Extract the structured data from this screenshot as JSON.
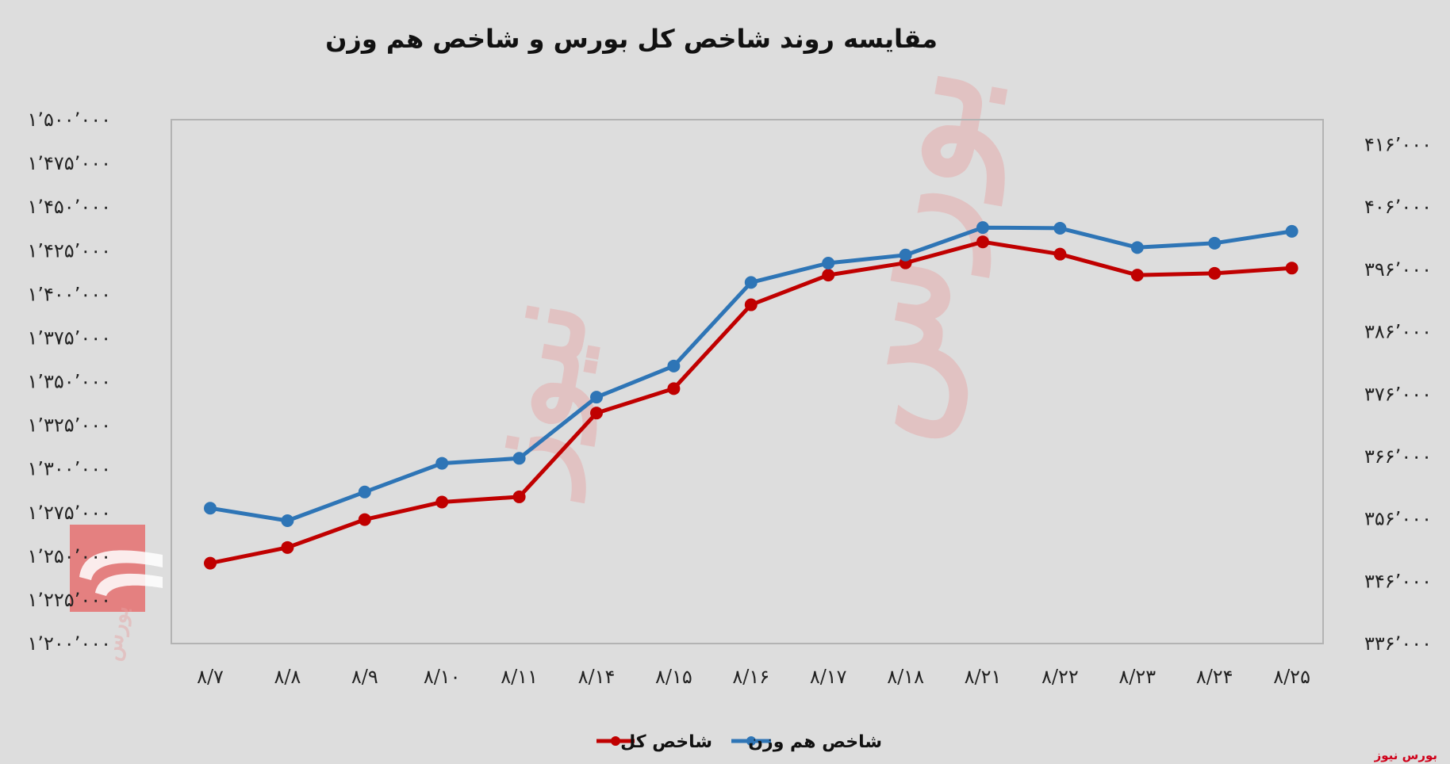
{
  "chart_data": {
    "type": "line",
    "title": "مقایسه روند شاخص کل بورس و شاخص هم وزن",
    "categories": [
      "۸/۷",
      "۸/۸",
      "۸/۹",
      "۸/۱۰",
      "۸/۱۱",
      "۸/۱۴",
      "۸/۱۵",
      "۸/۱۶",
      "۸/۱۷",
      "۸/۱۸",
      "۸/۲۱",
      "۸/۲۲",
      "۸/۲۳",
      "۸/۲۴",
      "۸/۲۵"
    ],
    "y_left": {
      "ylim": [
        1200000,
        1500000
      ],
      "ticks": [
        1200000,
        1225000,
        1250000,
        1275000,
        1300000,
        1325000,
        1350000,
        1375000,
        1400000,
        1425000,
        1450000,
        1475000,
        1500000
      ],
      "tick_labels": [
        "۱٬۲۰۰٬۰۰۰",
        "۱٬۲۲۵٬۰۰۰",
        "۱٬۲۵۰٬۰۰۰",
        "۱٬۲۷۵٬۰۰۰",
        "۱٬۳۰۰٬۰۰۰",
        "۱٬۳۲۵٬۰۰۰",
        "۱٬۳۵۰٬۰۰۰",
        "۱٬۳۷۵٬۰۰۰",
        "۱٬۴۰۰٬۰۰۰",
        "۱٬۴۲۵٬۰۰۰",
        "۱٬۴۵۰٬۰۰۰",
        "۱٬۴۷۵٬۰۰۰",
        "۱٬۵۰۰٬۰۰۰"
      ]
    },
    "y_right": {
      "ylim": [
        336000,
        421000
      ],
      "ticks": [
        336000,
        346000,
        356000,
        366000,
        376000,
        386000,
        396000,
        406000,
        416000
      ],
      "tick_labels": [
        "۳۳۶٬۰۰۰",
        "۳۴۶٬۰۰۰",
        "۳۵۶٬۰۰۰",
        "۳۶۶٬۰۰۰",
        "۳۷۶٬۰۰۰",
        "۳۸۶٬۰۰۰",
        "۳۹۶٬۰۰۰",
        "۴۰۶٬۰۰۰",
        "۴۱۶٬۰۰۰"
      ]
    },
    "series": [
      {
        "name": "شاخص کل",
        "axis": "left",
        "color": "#c00000",
        "values": [
          1246000,
          1255000,
          1271000,
          1281000,
          1284000,
          1332000,
          1346000,
          1394000,
          1411000,
          1418000,
          1430000,
          1423000,
          1411000,
          1412000,
          1415000
        ]
      },
      {
        "name": "شاخص هم وزن",
        "axis": "right",
        "color": "#2e75b6",
        "values": [
          357700,
          355700,
          360300,
          364900,
          365700,
          375500,
          380500,
          393900,
          397000,
          398300,
          402700,
          402600,
          399500,
          400200,
          402100
        ]
      }
    ],
    "grid": false,
    "legend": "bottom-center"
  },
  "brand_label": "بورس نیوز",
  "colors": {
    "background": "#dddddd",
    "plot_border": "#b3b3b3"
  }
}
